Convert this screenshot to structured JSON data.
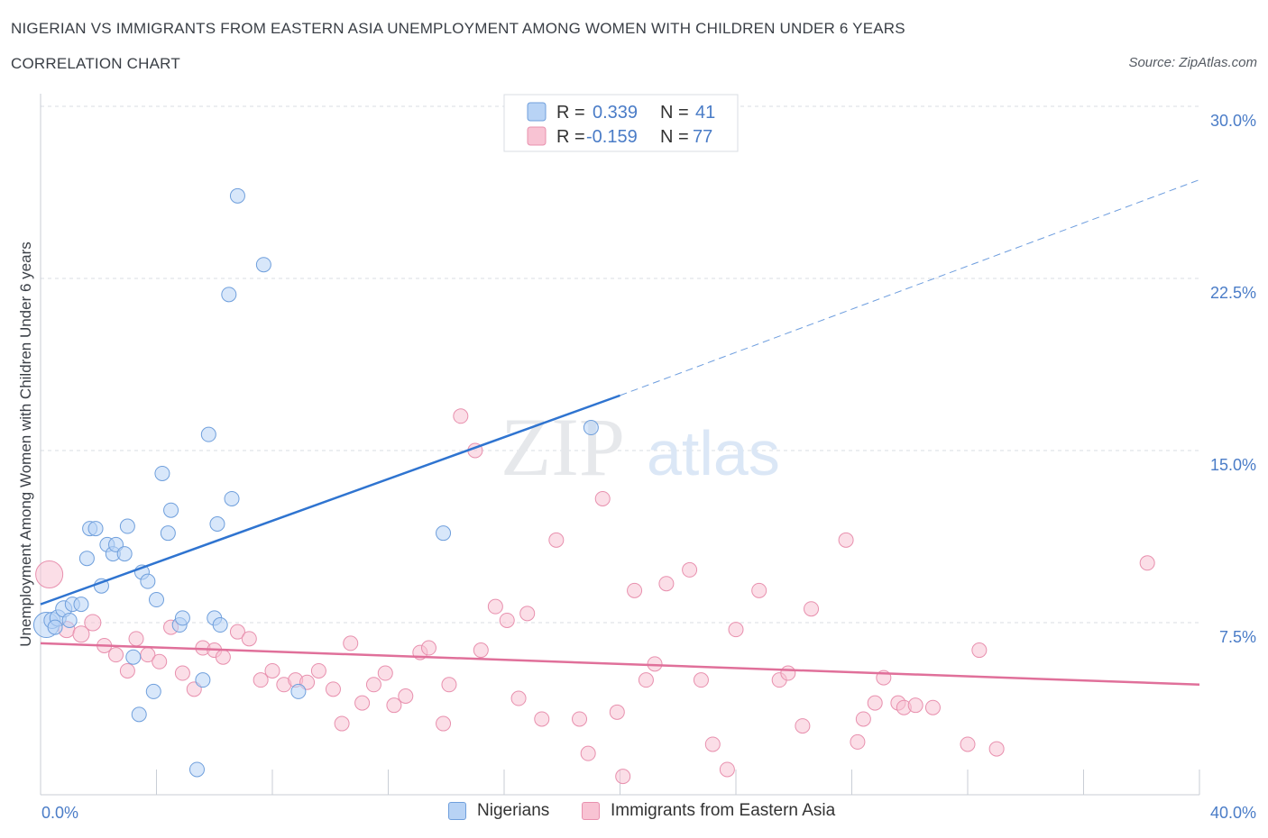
{
  "header": {
    "title": "NIGERIAN VS IMMIGRANTS FROM EASTERN ASIA UNEMPLOYMENT AMONG WOMEN WITH CHILDREN UNDER 6 YEARS",
    "subtitle": "CORRELATION CHART",
    "source": "Source: ZipAtlas.com"
  },
  "watermark": {
    "zip": "ZIP",
    "atlas": "atlas"
  },
  "legend": {
    "r_label": "R =",
    "n_label": "N =",
    "rows": [
      {
        "r": "0.339",
        "n": "41"
      },
      {
        "r": "-0.159",
        "n": "77"
      }
    ]
  },
  "colors": {
    "nigerians_fill": "#b8d3f5",
    "nigerians_stroke": "#6f9fdc",
    "nigerians_line": "#2f74d0",
    "eastasia_fill": "#f8c3d3",
    "eastasia_stroke": "#e890ae",
    "eastasia_line": "#e0709a",
    "accent_text": "#4a7cc7",
    "grid": "#d9dde3"
  },
  "chart_data": {
    "type": "scatter",
    "title": "NIGERIAN VS IMMIGRANTS FROM EASTERN ASIA UNEMPLOYMENT AMONG WOMEN WITH CHILDREN UNDER 6 YEARS",
    "ylabel": "Unemployment Among Women with Children Under 6 years",
    "xlabel": "",
    "xlim": [
      0,
      40
    ],
    "ylim": [
      0,
      30
    ],
    "x_tick_labels": [
      "0.0%",
      "40.0%"
    ],
    "y_ticks": [
      7.5,
      15.0,
      22.5,
      30.0
    ],
    "y_tick_labels": [
      "7.5%",
      "15.0%",
      "22.5%",
      "30.0%"
    ],
    "grid": true,
    "legend_position": "bottom",
    "series": [
      {
        "name": "Nigerians",
        "r": 0.339,
        "n": 41,
        "trend": {
          "x0": 0,
          "y0": 8.3,
          "x1": 20,
          "y1": 17.4,
          "dashed_to_x": 40,
          "dashed_to_y": 26.8
        },
        "points": [
          [
            0.2,
            7.4,
            14
          ],
          [
            0.4,
            7.6,
            9
          ],
          [
            0.6,
            7.7,
            9
          ],
          [
            0.8,
            8.1,
            9
          ],
          [
            1.1,
            8.3,
            8
          ],
          [
            1.4,
            8.3,
            8
          ],
          [
            1.6,
            10.3,
            8
          ],
          [
            1.7,
            11.6,
            8
          ],
          [
            1.9,
            11.6,
            8
          ],
          [
            2.1,
            9.1,
            8
          ],
          [
            2.3,
            10.9,
            8
          ],
          [
            2.5,
            10.5,
            8
          ],
          [
            2.6,
            10.9,
            8
          ],
          [
            2.9,
            10.5,
            8
          ],
          [
            3.0,
            11.7,
            8
          ],
          [
            3.2,
            6.0,
            8
          ],
          [
            3.4,
            3.5,
            8
          ],
          [
            3.5,
            9.7,
            8
          ],
          [
            3.7,
            9.3,
            8
          ],
          [
            3.9,
            4.5,
            8
          ],
          [
            4.0,
            8.5,
            8
          ],
          [
            4.2,
            14.0,
            8
          ],
          [
            4.4,
            11.4,
            8
          ],
          [
            4.5,
            12.4,
            8
          ],
          [
            4.8,
            7.4,
            8
          ],
          [
            4.9,
            7.7,
            8
          ],
          [
            5.4,
            1.1,
            8
          ],
          [
            5.6,
            5.0,
            8
          ],
          [
            5.8,
            15.7,
            8
          ],
          [
            6.0,
            7.7,
            8
          ],
          [
            6.1,
            11.8,
            8
          ],
          [
            6.2,
            7.4,
            8
          ],
          [
            6.5,
            21.8,
            8
          ],
          [
            6.6,
            12.9,
            8
          ],
          [
            6.8,
            26.1,
            8
          ],
          [
            7.7,
            23.1,
            8
          ],
          [
            8.9,
            4.5,
            8
          ],
          [
            13.9,
            11.4,
            8
          ],
          [
            19.0,
            16.0,
            8
          ],
          [
            1.0,
            7.6,
            8
          ],
          [
            0.5,
            7.3,
            8
          ]
        ]
      },
      {
        "name": "Immigrants from Eastern Asia",
        "r": -0.159,
        "n": 77,
        "trend": {
          "x0": 0,
          "y0": 6.6,
          "x1": 40,
          "y1": 4.8
        },
        "points": [
          [
            0.3,
            9.6,
            15
          ],
          [
            0.9,
            7.2,
            9
          ],
          [
            1.4,
            7.0,
            9
          ],
          [
            1.8,
            7.5,
            9
          ],
          [
            2.2,
            6.5,
            8
          ],
          [
            2.6,
            6.1,
            8
          ],
          [
            3.0,
            5.4,
            8
          ],
          [
            3.3,
            6.8,
            8
          ],
          [
            3.7,
            6.1,
            8
          ],
          [
            4.1,
            5.8,
            8
          ],
          [
            4.5,
            7.3,
            8
          ],
          [
            4.9,
            5.3,
            8
          ],
          [
            5.3,
            4.6,
            8
          ],
          [
            5.6,
            6.4,
            8
          ],
          [
            6.0,
            6.3,
            8
          ],
          [
            6.3,
            6.0,
            8
          ],
          [
            6.8,
            7.1,
            8
          ],
          [
            7.2,
            6.8,
            8
          ],
          [
            7.6,
            5.0,
            8
          ],
          [
            8.0,
            5.4,
            8
          ],
          [
            8.4,
            4.8,
            8
          ],
          [
            8.8,
            5.0,
            8
          ],
          [
            9.2,
            4.9,
            8
          ],
          [
            9.6,
            5.4,
            8
          ],
          [
            10.1,
            4.6,
            8
          ],
          [
            10.4,
            3.1,
            8
          ],
          [
            10.7,
            6.6,
            8
          ],
          [
            11.1,
            4.0,
            8
          ],
          [
            11.5,
            4.8,
            8
          ],
          [
            11.9,
            5.3,
            8
          ],
          [
            12.2,
            3.9,
            8
          ],
          [
            12.6,
            4.3,
            8
          ],
          [
            13.1,
            6.2,
            8
          ],
          [
            13.4,
            6.4,
            8
          ],
          [
            13.9,
            3.1,
            8
          ],
          [
            14.1,
            4.8,
            8
          ],
          [
            14.5,
            16.5,
            8
          ],
          [
            15.0,
            15.0,
            8
          ],
          [
            15.2,
            6.3,
            8
          ],
          [
            15.7,
            8.2,
            8
          ],
          [
            16.1,
            7.6,
            8
          ],
          [
            16.5,
            4.2,
            8
          ],
          [
            16.8,
            7.9,
            8
          ],
          [
            17.3,
            3.3,
            8
          ],
          [
            17.8,
            11.1,
            8
          ],
          [
            18.6,
            3.3,
            8
          ],
          [
            18.9,
            1.8,
            8
          ],
          [
            19.4,
            12.9,
            8
          ],
          [
            19.9,
            3.6,
            8
          ],
          [
            20.1,
            0.8,
            8
          ],
          [
            20.5,
            8.9,
            8
          ],
          [
            20.9,
            5.0,
            8
          ],
          [
            21.2,
            5.7,
            8
          ],
          [
            21.6,
            9.2,
            8
          ],
          [
            22.4,
            9.8,
            8
          ],
          [
            22.8,
            5.0,
            8
          ],
          [
            23.2,
            2.2,
            8
          ],
          [
            23.7,
            1.1,
            8
          ],
          [
            24.0,
            7.2,
            8
          ],
          [
            24.8,
            8.9,
            8
          ],
          [
            25.5,
            5.0,
            8
          ],
          [
            25.8,
            5.3,
            8
          ],
          [
            26.3,
            3.0,
            8
          ],
          [
            26.6,
            8.1,
            8
          ],
          [
            27.8,
            11.1,
            8
          ],
          [
            28.2,
            2.3,
            8
          ],
          [
            28.4,
            3.3,
            8
          ],
          [
            28.8,
            4.0,
            8
          ],
          [
            29.1,
            5.1,
            8
          ],
          [
            29.6,
            4.0,
            8
          ],
          [
            29.8,
            3.8,
            8
          ],
          [
            30.2,
            3.9,
            8
          ],
          [
            30.8,
            3.8,
            8
          ],
          [
            32.0,
            2.2,
            8
          ],
          [
            32.4,
            6.3,
            8
          ],
          [
            33.0,
            2.0,
            8
          ],
          [
            38.2,
            10.1,
            8
          ]
        ]
      }
    ]
  },
  "bottom_legend": [
    {
      "label": "Nigerians"
    },
    {
      "label": "Immigrants from Eastern Asia"
    }
  ]
}
